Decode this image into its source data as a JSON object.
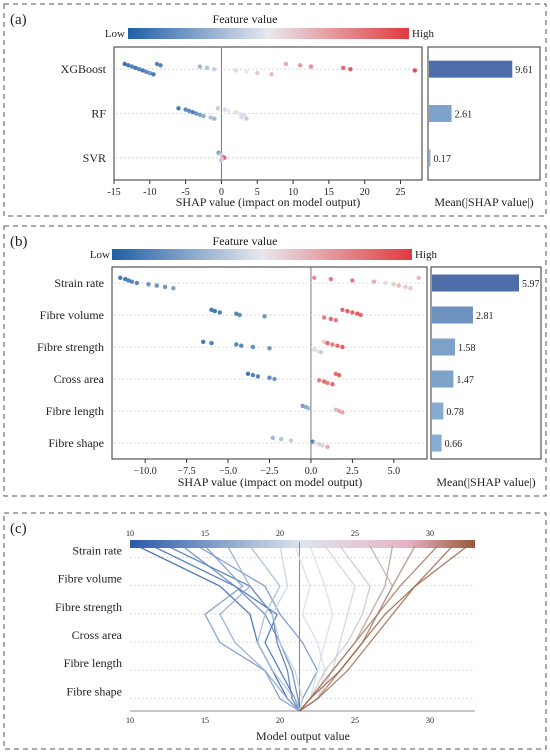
{
  "figure": {
    "panels": [
      {
        "label": "(a)"
      },
      {
        "label": "(b)"
      },
      {
        "label": "(c)"
      }
    ]
  },
  "chart_data": [
    {
      "type": "scatter",
      "panel": "(a)",
      "title": "",
      "colorbar": {
        "title": "Feature value",
        "low": "Low",
        "high": "High",
        "low_color": "#1f5fa6",
        "high_color": "#e03a3e"
      },
      "xlabel": "SHAP value (impact on model output)",
      "xlim": [
        -15,
        28
      ],
      "xticks": [
        -15,
        -10,
        -5,
        0,
        5,
        10,
        15,
        20,
        25
      ],
      "features": [
        {
          "name": "XGBoost",
          "points": [
            [
              -13.5,
              0.02
            ],
            [
              -13,
              0.05
            ],
            [
              -12.5,
              0.08
            ],
            [
              -12,
              0.05
            ],
            [
              -11.5,
              0.1
            ],
            [
              -11,
              0.05
            ],
            [
              -10.5,
              0.12
            ],
            [
              -10,
              0.15
            ],
            [
              -9.5,
              0.05
            ],
            [
              -9,
              0.1
            ],
            [
              -8.5,
              0.08
            ],
            [
              -3,
              0.3
            ],
            [
              -2,
              0.35
            ],
            [
              -1,
              0.4
            ],
            [
              2,
              0.55
            ],
            [
              3.5,
              0.5
            ],
            [
              5,
              0.6
            ],
            [
              7,
              0.65
            ],
            [
              9,
              0.7
            ],
            [
              11,
              0.75
            ],
            [
              12.5,
              0.8
            ],
            [
              17,
              0.9
            ],
            [
              18,
              0.95
            ],
            [
              27,
              1.0
            ]
          ]
        },
        {
          "name": "RF",
          "points": [
            [
              -6,
              0.05
            ],
            [
              -5,
              0.1
            ],
            [
              -4.5,
              0.12
            ],
            [
              -4,
              0.08
            ],
            [
              -3.5,
              0.15
            ],
            [
              -3,
              0.2
            ],
            [
              -2.5,
              0.25
            ],
            [
              -1.5,
              0.35
            ],
            [
              -1,
              0.3
            ],
            [
              -0.5,
              0.4
            ],
            [
              0.5,
              0.45
            ],
            [
              1,
              0.5
            ],
            [
              2,
              0.55
            ],
            [
              2.5,
              0.5
            ],
            [
              3,
              0.45
            ],
            [
              3.3,
              0.5
            ],
            [
              2.8,
              0.55
            ],
            [
              3.5,
              0.4
            ]
          ]
        },
        {
          "name": "SVR",
          "points": [
            [
              -0.4,
              0.2
            ],
            [
              -0.2,
              0.3
            ],
            [
              0,
              0.5
            ],
            [
              0.2,
              0.7
            ],
            [
              0.4,
              0.9
            ],
            [
              0.1,
              0.6
            ],
            [
              -0.1,
              0.4
            ]
          ]
        }
      ],
      "mean_abs_shap": {
        "xlabel": "Mean(|SHAP value|)",
        "values": [
          9.61,
          2.61,
          0.17
        ],
        "labels": [
          "9.61",
          "2.61",
          "0.17"
        ],
        "max": 12
      }
    },
    {
      "type": "scatter",
      "panel": "(b)",
      "title": "",
      "colorbar": {
        "title": "Feature value",
        "low": "Low",
        "high": "High",
        "low_color": "#1f5fa6",
        "high_color": "#e03a3e"
      },
      "xlabel": "SHAP value (impact on model output)",
      "xlim": [
        -12,
        7
      ],
      "xticks": [
        -10.0,
        -7.5,
        -5.0,
        -2.5,
        0.0,
        2.5,
        5.0
      ],
      "xtick_labels": [
        "−10.0",
        "−7.5",
        "−5.0",
        "−2.5",
        "0.0",
        "2.5",
        "5.0"
      ],
      "features": [
        {
          "name": "Strain rate",
          "points": [
            [
              -11.5,
              0.05
            ],
            [
              -11.2,
              0.05
            ],
            [
              -11,
              0.08
            ],
            [
              -10.8,
              0.1
            ],
            [
              -10.5,
              0.1
            ],
            [
              -9.8,
              0.15
            ],
            [
              -9.3,
              0.15
            ],
            [
              -8.8,
              0.15
            ],
            [
              -8.3,
              0.2
            ],
            [
              0.2,
              0.8
            ],
            [
              1.2,
              0.85
            ],
            [
              2.5,
              0.85
            ],
            [
              3.8,
              0.7
            ],
            [
              4.5,
              0.55
            ],
            [
              5,
              0.6
            ],
            [
              5.3,
              0.65
            ],
            [
              5.7,
              0.6
            ],
            [
              6,
              0.6
            ],
            [
              6.5,
              0.65
            ]
          ]
        },
        {
          "name": "Fibre volume",
          "points": [
            [
              -6,
              0.05
            ],
            [
              -5.8,
              0.05
            ],
            [
              -5.5,
              0.08
            ],
            [
              -4.5,
              0.1
            ],
            [
              -4.3,
              0.12
            ],
            [
              -2.8,
              0.15
            ],
            [
              0.8,
              0.85
            ],
            [
              1.2,
              0.9
            ],
            [
              1.5,
              0.85
            ],
            [
              1.9,
              0.9
            ],
            [
              2.2,
              0.95
            ],
            [
              2.5,
              0.92
            ],
            [
              2.8,
              0.95
            ],
            [
              3,
              0.9
            ]
          ]
        },
        {
          "name": "Fibre strength",
          "points": [
            [
              -6.5,
              0.05
            ],
            [
              -6,
              0.08
            ],
            [
              -4.5,
              0.1
            ],
            [
              -4.2,
              0.1
            ],
            [
              -3.5,
              0.12
            ],
            [
              -2.5,
              0.15
            ],
            [
              0.2,
              0.45
            ],
            [
              0.4,
              0.5
            ],
            [
              0.6,
              0.4
            ],
            [
              0.8,
              0.6
            ],
            [
              1,
              0.9
            ],
            [
              1.3,
              0.85
            ],
            [
              1.6,
              0.9
            ],
            [
              1.9,
              0.95
            ]
          ]
        },
        {
          "name": "Cross area",
          "points": [
            [
              -3.8,
              0.05
            ],
            [
              -3.5,
              0.08
            ],
            [
              -3.2,
              0.1
            ],
            [
              -2.5,
              0.12
            ],
            [
              -2.2,
              0.15
            ],
            [
              0.5,
              0.85
            ],
            [
              0.8,
              0.9
            ],
            [
              1,
              0.85
            ],
            [
              1.3,
              0.9
            ],
            [
              1.5,
              0.88
            ],
            [
              1.7,
              0.92
            ]
          ]
        },
        {
          "name": "Fibre length",
          "points": [
            [
              -0.5,
              0.2
            ],
            [
              -0.3,
              0.25
            ],
            [
              -0.1,
              0.3
            ],
            [
              1.5,
              0.65
            ],
            [
              1.7,
              0.7
            ],
            [
              1.9,
              0.72
            ]
          ]
        },
        {
          "name": "Fibre shape",
          "points": [
            [
              -2.3,
              0.3
            ],
            [
              -1.8,
              0.35
            ],
            [
              -1.2,
              0.4
            ],
            [
              0.1,
              0.1
            ],
            [
              0.3,
              0.5
            ],
            [
              0.5,
              0.6
            ],
            [
              0.7,
              0.45
            ],
            [
              1,
              0.7
            ]
          ]
        }
      ],
      "mean_abs_shap": {
        "xlabel": "Mean(|SHAP value|)",
        "values": [
          5.97,
          2.81,
          1.58,
          1.47,
          0.78,
          0.66
        ],
        "labels": [
          "5.97",
          "2.81",
          "1.58",
          "1.47",
          "0.78",
          "0.66"
        ],
        "max": 7
      }
    },
    {
      "type": "line",
      "panel": "(c)",
      "title": "",
      "xlabel": "Model output value",
      "xlim": [
        10,
        33
      ],
      "xticks": [
        10,
        15,
        20,
        25,
        30
      ],
      "base_value": 21.3,
      "features": [
        "Strain rate",
        "Fibre volume",
        "Fibre strength",
        "Cross area",
        "Fibre length",
        "Fibre shape"
      ],
      "colorscale": {
        "low": "#2a5aa8",
        "mid": "#d9e2ee",
        "high": "#9a5a3a"
      },
      "paths": [
        {
          "v": 10.5,
          "pts": [
            21.3,
            20.5,
            19.5,
            18.5,
            18.0,
            16.0,
            10.5
          ]
        },
        {
          "v": 11.5,
          "pts": [
            21.3,
            21.0,
            20.0,
            19.0,
            19.8,
            17.0,
            11.5
          ]
        },
        {
          "v": 12.5,
          "pts": [
            21.3,
            20.8,
            20.5,
            19.8,
            19.5,
            18.0,
            12.5
          ]
        },
        {
          "v": 13.5,
          "pts": [
            21.3,
            21.2,
            20.8,
            20.0,
            19.0,
            17.0,
            13.5
          ]
        },
        {
          "v": 14.5,
          "pts": [
            21.3,
            21.5,
            22.5,
            21.5,
            20.0,
            19.0,
            14.5
          ]
        },
        {
          "v": 15.0,
          "pts": [
            21.3,
            20.0,
            19.0,
            16.0,
            15.0,
            17.5,
            15.0
          ]
        },
        {
          "v": 16.5,
          "pts": [
            21.3,
            20.5,
            19.0,
            17.0,
            16.0,
            18.0,
            16.5
          ]
        },
        {
          "v": 18.0,
          "pts": [
            21.3,
            21.0,
            19.5,
            18.5,
            19.0,
            20.0,
            18.0
          ]
        },
        {
          "v": 20.0,
          "pts": [
            21.3,
            21.5,
            21.0,
            20.0,
            19.5,
            20.5,
            20.0
          ]
        },
        {
          "v": 21.0,
          "pts": [
            21.3,
            22.5,
            23.0,
            22.5,
            21.5,
            22.0,
            21.0
          ]
        },
        {
          "v": 22.0,
          "pts": [
            21.3,
            22.0,
            22.5,
            23.0,
            23.5,
            23.0,
            22.0
          ]
        },
        {
          "v": 23.0,
          "pts": [
            21.3,
            22.5,
            23.5,
            24.0,
            24.5,
            25.0,
            23.0
          ]
        },
        {
          "v": 24.0,
          "pts": [
            21.3,
            22.0,
            23.0,
            24.5,
            25.5,
            26.0,
            24.0
          ]
        },
        {
          "v": 26.0,
          "pts": [
            21.3,
            22.5,
            24.0,
            25.5,
            26.5,
            27.5,
            26.0
          ]
        },
        {
          "v": 27.5,
          "pts": [
            21.3,
            22.0,
            23.5,
            25.0,
            26.0,
            27.0,
            27.5
          ]
        },
        {
          "v": 29.0,
          "pts": [
            21.3,
            22.5,
            24.0,
            25.5,
            26.5,
            27.5,
            29.0
          ]
        },
        {
          "v": 30.5,
          "pts": [
            21.3,
            22.0,
            23.5,
            25.0,
            26.5,
            28.0,
            30.5
          ]
        },
        {
          "v": 31.5,
          "pts": [
            21.3,
            22.5,
            24.5,
            26.0,
            27.5,
            29.0,
            31.5
          ]
        },
        {
          "v": 32.5,
          "pts": [
            21.3,
            22.0,
            24.0,
            25.5,
            27.0,
            29.0,
            32.5
          ]
        }
      ]
    }
  ]
}
